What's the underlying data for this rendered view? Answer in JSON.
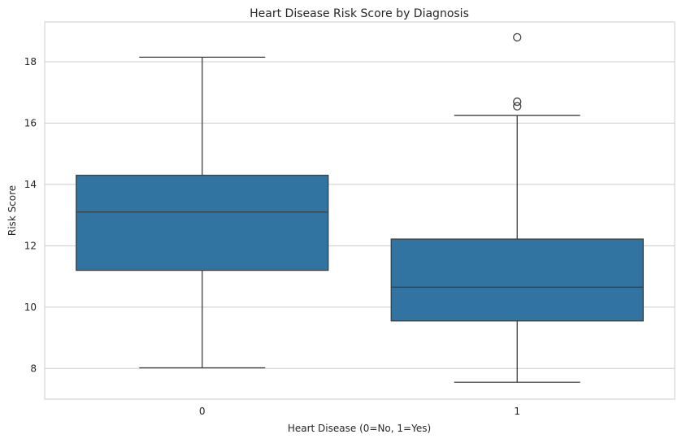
{
  "chart_data": {
    "type": "box",
    "title": "Heart Disease Risk Score by Diagnosis",
    "xlabel": "Heart Disease (0=No, 1=Yes)",
    "ylabel": "Risk Score",
    "ylim": [
      7,
      19.3
    ],
    "yticks": [
      8,
      10,
      12,
      14,
      16,
      18
    ],
    "categories": [
      "0",
      "1"
    ],
    "grid": "horizontal",
    "box_color": "#3274a1",
    "line_color": "#3f3f3f",
    "grid_color": "#cccccc",
    "boxes": [
      {
        "category": "0",
        "whisker_low": 8.02,
        "q1": 11.2,
        "median": 13.1,
        "q3": 14.3,
        "whisker_high": 18.15,
        "outliers": []
      },
      {
        "category": "1",
        "whisker_low": 7.55,
        "q1": 9.55,
        "median": 10.65,
        "q3": 12.22,
        "whisker_high": 16.25,
        "outliers": [
          16.55,
          16.7,
          18.8
        ]
      }
    ]
  }
}
